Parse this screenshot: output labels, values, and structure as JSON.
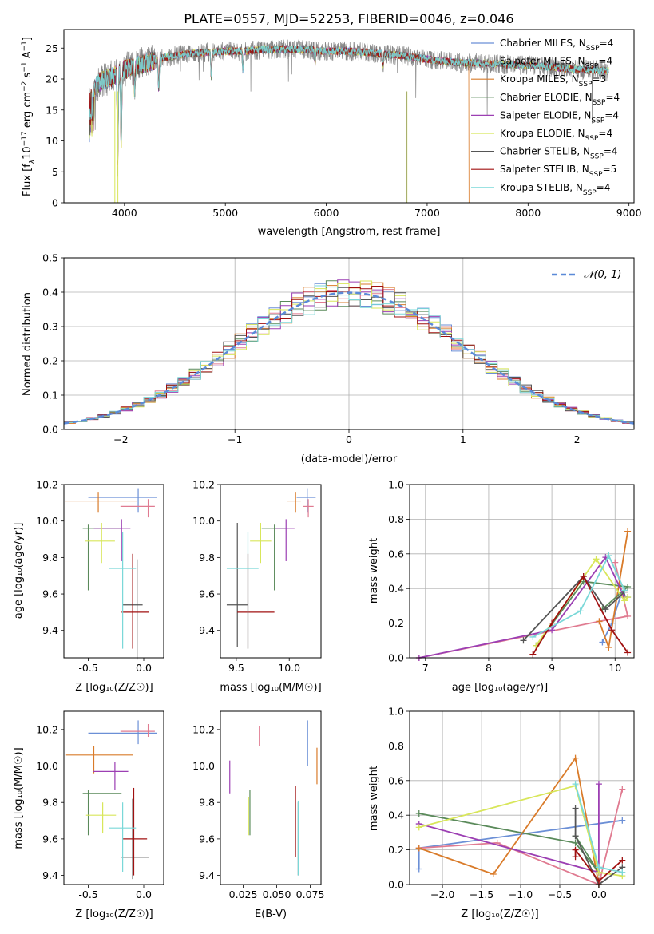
{
  "title": "PLATE=0557, MJD=52253, FIBERID=0046, z=0.046",
  "colors": {
    "chabrier_miles": "#6b8fd6",
    "salpeter_miles": "#e07b91",
    "kroupa_miles": "#d97b2a",
    "chabrier_elodie": "#5a8a5a",
    "salpeter_elodie": "#9c3fb3",
    "kroupa_elodie": "#d8e65a",
    "chabrier_stelib": "#555555",
    "salpeter_stelib": "#a01010",
    "kroupa_stelib": "#7ad8d8",
    "spectrum_data": "#808080"
  },
  "chart_data": [
    {
      "id": "spectrum",
      "type": "line",
      "title": "PLATE=0557, MJD=52253, FIBERID=0046, z=0.046",
      "xlabel": "wavelength [Angstrom, rest frame]",
      "ylabel_parts": {
        "a": "Flux [f",
        "b": "λ",
        "c": "10",
        "d": "−17",
        "e": " erg cm",
        "f": "−2",
        "g": " s",
        "h": "−1",
        "i": " A",
        "j": "−1",
        "k": "]"
      },
      "xlim": [
        3400,
        9050
      ],
      "ylim": [
        0,
        28
      ],
      "xticks": [
        4000,
        5000,
        6000,
        7000,
        8000,
        9000
      ],
      "yticks": [
        0,
        5,
        10,
        15,
        20,
        25
      ],
      "legend_placement": "right",
      "legend": [
        {
          "name": "Chabrier MILES",
          "n": "4",
          "key": "chabrier_miles"
        },
        {
          "name": "Salpeter MILES",
          "n": "4",
          "key": "salpeter_miles"
        },
        {
          "name": "Kroupa MILES",
          "n": "3",
          "key": "kroupa_miles"
        },
        {
          "name": "Chabrier ELODIE",
          "n": "4",
          "key": "chabrier_elodie"
        },
        {
          "name": "Salpeter ELODIE",
          "n": "4",
          "key": "salpeter_elodie"
        },
        {
          "name": "Kroupa ELODIE",
          "n": "4",
          "key": "kroupa_elodie"
        },
        {
          "name": "Chabrier STELIB",
          "n": "4",
          "key": "chabrier_stelib"
        },
        {
          "name": "Salpeter STELIB",
          "n": "5",
          "key": "salpeter_stelib"
        },
        {
          "name": "Kroupa STELIB",
          "n": "4",
          "key": "kroupa_stelib"
        }
      ],
      "continuum": [
        [
          3650,
          17
        ],
        [
          3750,
          19.5
        ],
        [
          3900,
          20.5
        ],
        [
          4000,
          21.5
        ],
        [
          4200,
          22.5
        ],
        [
          4400,
          23.5
        ],
        [
          4600,
          24
        ],
        [
          4800,
          24.3
        ],
        [
          5000,
          24.5
        ],
        [
          5200,
          24.5
        ],
        [
          5400,
          24.8
        ],
        [
          5600,
          24.8
        ],
        [
          5800,
          24.8
        ],
        [
          6000,
          24.5
        ],
        [
          6200,
          24.5
        ],
        [
          6400,
          24.3
        ],
        [
          6600,
          24
        ],
        [
          6800,
          23.7
        ],
        [
          7000,
          23.2
        ],
        [
          7200,
          22.8
        ],
        [
          7400,
          22.6
        ],
        [
          7600,
          22.5
        ],
        [
          7800,
          22.3
        ],
        [
          8000,
          22.2
        ],
        [
          8200,
          22
        ],
        [
          8400,
          21.6
        ],
        [
          8600,
          21.5
        ],
        [
          8800,
          21.3
        ]
      ],
      "wave_range": [
        3650,
        8800
      ]
    },
    {
      "id": "residuals",
      "type": "area",
      "xlabel": "(data-model)/error",
      "ylabel": "Normed distribution",
      "xlim": [
        -2.5,
        2.5
      ],
      "ylim": [
        0,
        0.5
      ],
      "xticks": [
        -2,
        -1,
        0,
        1,
        2
      ],
      "yticks": [
        0,
        0.1,
        0.2,
        0.3,
        0.4,
        0.5
      ],
      "bin_width": 0.1,
      "reference": {
        "name": "𝒩(0, 1)",
        "mean": 0,
        "sigma": 1
      },
      "legend_placement": "top-right",
      "grid": true
    },
    {
      "id": "age_vs_Z",
      "type": "scatter",
      "xlabel": "Z [log₁₀(Z/Z☉)]",
      "ylabel": "age  [log₁₀(age/yr)]",
      "xlim": [
        -0.72,
        0.18
      ],
      "ylim": [
        9.25,
        10.2
      ],
      "xticks": [
        -0.5,
        0.0
      ],
      "yticks": [
        9.4,
        9.6,
        9.8,
        10.0,
        10.2
      ],
      "points": [
        {
          "key": "chabrier_miles",
          "x": -0.05,
          "y": 10.13,
          "xerr": [
            0.45,
            0.17
          ],
          "yerr": [
            0.08,
            0.05
          ]
        },
        {
          "key": "salpeter_miles",
          "x": 0.04,
          "y": 10.08,
          "xerr": [
            0.25,
            0.06
          ],
          "yerr": [
            0.06,
            0.04
          ]
        },
        {
          "key": "kroupa_miles",
          "x": -0.41,
          "y": 10.11,
          "xerr": [
            0.3,
            0.35
          ],
          "yerr": [
            0.06,
            0.05
          ]
        },
        {
          "key": "chabrier_elodie",
          "x": -0.5,
          "y": 9.96,
          "xerr": [
            0.05,
            0.3
          ],
          "yerr": [
            0.34,
            0.02
          ]
        },
        {
          "key": "salpeter_elodie",
          "x": -0.2,
          "y": 9.96,
          "xerr": [
            0.25,
            0.08
          ],
          "yerr": [
            0.18,
            0.05
          ]
        },
        {
          "key": "kroupa_elodie",
          "x": -0.38,
          "y": 9.89,
          "xerr": [
            0.15,
            0.12
          ],
          "yerr": [
            0.12,
            0.1
          ]
        },
        {
          "key": "chabrier_stelib",
          "x": -0.06,
          "y": 9.54,
          "xerr": [
            0.13,
            0.05
          ],
          "yerr": [
            0.3,
            0.25
          ]
        },
        {
          "key": "salpeter_stelib",
          "x": -0.1,
          "y": 9.5,
          "xerr": [
            0.1,
            0.15
          ],
          "yerr": [
            0.2,
            0.32
          ]
        },
        {
          "key": "kroupa_stelib",
          "x": -0.19,
          "y": 9.74,
          "xerr": [
            0.12,
            0.12
          ],
          "yerr": [
            0.44,
            0.2
          ]
        }
      ]
    },
    {
      "id": "age_vs_mass",
      "type": "scatter",
      "xlabel": "mass [log₁₀(M/M☉)]",
      "xlim": [
        9.35,
        10.3
      ],
      "ylim": [
        9.25,
        10.2
      ],
      "xticks": [
        9.5,
        10.0
      ],
      "yticks": [
        9.4,
        9.6,
        9.8,
        10.0,
        10.2
      ],
      "points": [
        {
          "key": "chabrier_miles",
          "x": 10.17,
          "y": 10.13,
          "xerr": [
            0.1,
            0.08
          ],
          "yerr": [
            0.08,
            0.05
          ]
        },
        {
          "key": "salpeter_miles",
          "x": 10.18,
          "y": 10.08,
          "xerr": [
            0.05,
            0.05
          ],
          "yerr": [
            0.06,
            0.04
          ]
        },
        {
          "key": "kroupa_miles",
          "x": 10.06,
          "y": 10.11,
          "xerr": [
            0.08,
            0.05
          ],
          "yerr": [
            0.06,
            0.05
          ]
        },
        {
          "key": "chabrier_elodie",
          "x": 9.86,
          "y": 9.96,
          "xerr": [
            0.12,
            0.12
          ],
          "yerr": [
            0.34,
            0.02
          ]
        },
        {
          "key": "salpeter_elodie",
          "x": 9.97,
          "y": 9.96,
          "xerr": [
            0.1,
            0.08
          ],
          "yerr": [
            0.18,
            0.05
          ]
        },
        {
          "key": "kroupa_elodie",
          "x": 9.73,
          "y": 9.89,
          "xerr": [
            0.1,
            0.1
          ],
          "yerr": [
            0.12,
            0.1
          ]
        },
        {
          "key": "chabrier_stelib",
          "x": 9.51,
          "y": 9.54,
          "xerr": [
            0.1,
            0.1
          ],
          "yerr": [
            0.23,
            0.45
          ]
        },
        {
          "key": "salpeter_stelib",
          "x": 9.61,
          "y": 9.5,
          "xerr": [
            0.1,
            0.25
          ],
          "yerr": [
            0.2,
            0.32
          ]
        },
        {
          "key": "kroupa_stelib",
          "x": 9.61,
          "y": 9.74,
          "xerr": [
            0.2,
            0.1
          ],
          "yerr": [
            0.44,
            0.2
          ]
        }
      ]
    },
    {
      "id": "weight_vs_age",
      "type": "line",
      "xlabel": "age  [log₁₀(age/yr)]",
      "ylabel": "mass weight",
      "xlim": [
        6.75,
        10.3
      ],
      "ylim": [
        0,
        1.0
      ],
      "xticks": [
        7,
        8,
        9,
        10
      ],
      "yticks": [
        0.0,
        0.2,
        0.4,
        0.6,
        0.8,
        1.0
      ],
      "series": [
        {
          "key": "chabrier_miles",
          "x": [
            9.8,
            9.95,
            10.1,
            10.2
          ],
          "y": [
            0.09,
            0.2,
            0.37,
            0.35
          ]
        },
        {
          "key": "salpeter_miles",
          "x": [
            6.9,
            9.75,
            10.2,
            10.0
          ],
          "y": [
            0.0,
            0.21,
            0.24,
            0.55
          ]
        },
        {
          "key": "kroupa_miles",
          "x": [
            9.75,
            9.9,
            10.2
          ],
          "y": [
            0.21,
            0.06,
            0.73
          ]
        },
        {
          "key": "chabrier_elodie",
          "x": [
            8.75,
            9.5,
            10.2,
            9.8
          ],
          "y": [
            0.07,
            0.44,
            0.41,
            0.28
          ]
        },
        {
          "key": "salpeter_elodie",
          "x": [
            6.9,
            9.0,
            9.85,
            10.15
          ],
          "y": [
            0.0,
            0.16,
            0.58,
            0.35
          ]
        },
        {
          "key": "kroupa_elodie",
          "x": [
            8.75,
            9.7,
            10.15,
            10.2
          ],
          "y": [
            0.07,
            0.57,
            0.33,
            0.35
          ]
        },
        {
          "key": "chabrier_stelib",
          "x": [
            8.55,
            9.5,
            9.85,
            10.15
          ],
          "y": [
            0.1,
            0.47,
            0.28,
            0.38
          ]
        },
        {
          "key": "salpeter_stelib",
          "x": [
            8.7,
            9.0,
            9.5,
            9.95,
            10.2
          ],
          "y": [
            0.02,
            0.2,
            0.47,
            0.16,
            0.03
          ]
        },
        {
          "key": "kroupa_stelib",
          "x": [
            8.7,
            9.45,
            9.9,
            10.15
          ],
          "y": [
            0.12,
            0.27,
            0.59,
            0.39
          ]
        }
      ]
    },
    {
      "id": "mass_vs_Z",
      "type": "scatter",
      "xlabel": "Z [log₁₀(Z/Z☉)]",
      "ylabel": "mass [log₁₀(M/M☉)]",
      "xlim": [
        -0.72,
        0.18
      ],
      "ylim": [
        9.35,
        10.3
      ],
      "xticks": [
        -0.5,
        0.0
      ],
      "yticks": [
        9.4,
        9.6,
        9.8,
        10.0,
        10.2
      ],
      "points": [
        {
          "key": "chabrier_miles",
          "x": -0.05,
          "y": 10.18,
          "xerr": [
            0.45,
            0.17
          ],
          "yerr": [
            0.06,
            0.07
          ]
        },
        {
          "key": "salpeter_miles",
          "x": 0.04,
          "y": 10.19,
          "xerr": [
            0.25,
            0.06
          ],
          "yerr": [
            0.03,
            0.04
          ]
        },
        {
          "key": "kroupa_miles",
          "x": -0.45,
          "y": 10.06,
          "xerr": [
            0.25,
            0.35
          ],
          "yerr": [
            0.1,
            0.05
          ]
        },
        {
          "key": "chabrier_elodie",
          "x": -0.5,
          "y": 9.85,
          "xerr": [
            0.05,
            0.3
          ],
          "yerr": [
            0.23,
            0.02
          ]
        },
        {
          "key": "salpeter_elodie",
          "x": -0.26,
          "y": 9.97,
          "xerr": [
            0.2,
            0.12
          ],
          "yerr": [
            0.1,
            0.05
          ]
        },
        {
          "key": "kroupa_elodie",
          "x": -0.37,
          "y": 9.73,
          "xerr": [
            0.15,
            0.12
          ],
          "yerr": [
            0.1,
            0.07
          ]
        },
        {
          "key": "chabrier_stelib",
          "x": -0.1,
          "y": 9.5,
          "xerr": [
            0.1,
            0.15
          ],
          "yerr": [
            0.12,
            0.32
          ]
        },
        {
          "key": "salpeter_stelib",
          "x": -0.09,
          "y": 9.6,
          "xerr": [
            0.1,
            0.12
          ],
          "yerr": [
            0.2,
            0.28
          ]
        },
        {
          "key": "kroupa_stelib",
          "x": -0.19,
          "y": 9.66,
          "xerr": [
            0.12,
            0.12
          ],
          "yerr": [
            0.24,
            0.14
          ]
        }
      ]
    },
    {
      "id": "mass_vs_ebv",
      "type": "scatter",
      "xlabel": "E(B-V)",
      "xlim": [
        0.008,
        0.083
      ],
      "ylim": [
        9.35,
        10.3
      ],
      "xticks": [
        0.025,
        0.05,
        0.075
      ],
      "yticks": [
        9.4,
        9.6,
        9.8,
        10.0,
        10.2
      ],
      "points": [
        {
          "key": "chabrier_miles",
          "x": 0.073,
          "y": 10.14,
          "yerr": [
            0.14,
            0.11
          ]
        },
        {
          "key": "salpeter_miles",
          "x": 0.037,
          "y": 10.17,
          "yerr": [
            0.06,
            0.05
          ]
        },
        {
          "key": "kroupa_miles",
          "x": 0.08,
          "y": 10.0,
          "yerr": [
            0.1,
            0.1
          ]
        },
        {
          "key": "chabrier_elodie",
          "x": 0.03,
          "y": 9.74,
          "yerr": [
            0.12,
            0.13
          ]
        },
        {
          "key": "salpeter_elodie",
          "x": 0.015,
          "y": 9.94,
          "yerr": [
            0.09,
            0.09
          ]
        },
        {
          "key": "kroupa_elodie",
          "x": 0.029,
          "y": 9.74,
          "yerr": [
            0.12,
            0.09
          ]
        },
        {
          "key": "chabrier_stelib",
          "x": 0.066,
          "y": 9.6,
          "yerr": [
            0.2,
            0.2
          ]
        },
        {
          "key": "salpeter_stelib",
          "x": 0.064,
          "y": 9.7,
          "yerr": [
            0.2,
            0.19
          ]
        },
        {
          "key": "kroupa_stelib",
          "x": 0.066,
          "y": 9.6,
          "yerr": [
            0.2,
            0.21
          ]
        }
      ]
    },
    {
      "id": "weight_vs_Z",
      "type": "line",
      "xlabel": "Z [log₁₀(Z/Z☉)]",
      "ylabel": "mass weight",
      "xlim": [
        -2.42,
        0.45
      ],
      "ylim": [
        0,
        1.0
      ],
      "xticks": [
        -2.0,
        -1.5,
        -1.0,
        -0.5,
        0.0
      ],
      "yticks": [
        0.0,
        0.2,
        0.4,
        0.6,
        0.8,
        1.0
      ],
      "series": [
        {
          "key": "chabrier_miles",
          "x": [
            -2.3,
            -2.3,
            0.3
          ],
          "y": [
            0.09,
            0.21,
            0.37
          ]
        },
        {
          "key": "salpeter_miles",
          "x": [
            -2.3,
            -1.3,
            0.0,
            0.3
          ],
          "y": [
            0.21,
            0.24,
            0.0,
            0.55
          ]
        },
        {
          "key": "kroupa_miles",
          "x": [
            -2.3,
            -1.35,
            -0.3,
            0.0
          ],
          "y": [
            0.21,
            0.06,
            0.73,
            0.0
          ]
        },
        {
          "key": "chabrier_elodie",
          "x": [
            -2.3,
            -0.3,
            0.0,
            -0.3
          ],
          "y": [
            0.41,
            0.24,
            0.07,
            0.28
          ]
        },
        {
          "key": "salpeter_elodie",
          "x": [
            -2.3,
            0.0,
            0.0
          ],
          "y": [
            0.35,
            0.07,
            0.58
          ]
        },
        {
          "key": "kroupa_elodie",
          "x": [
            -2.3,
            -0.3,
            0.0,
            0.3
          ],
          "y": [
            0.33,
            0.57,
            0.07,
            0.05
          ]
        },
        {
          "key": "chabrier_stelib",
          "x": [
            -0.3,
            -0.3,
            0.0,
            0.3
          ],
          "y": [
            0.44,
            0.28,
            0.0,
            0.1
          ]
        },
        {
          "key": "salpeter_stelib",
          "x": [
            -0.3,
            -0.3,
            0.0,
            0.3
          ],
          "y": [
            0.16,
            0.2,
            0.02,
            0.14
          ]
        },
        {
          "key": "kroupa_stelib",
          "x": [
            -0.3,
            0.0,
            0.3
          ],
          "y": [
            0.58,
            0.1,
            0.07
          ]
        }
      ]
    }
  ]
}
